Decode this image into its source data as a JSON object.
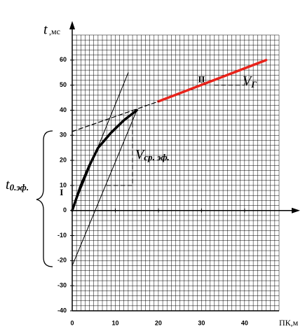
{
  "chart_data": {
    "type": "line",
    "x_label": "ПК,м",
    "y_label": "t",
    "y_unit": ",мс",
    "xlim": [
      0,
      48
    ],
    "ylim": [
      -40,
      70
    ],
    "xticks": [
      0,
      10,
      20,
      30,
      40
    ],
    "yticks": [
      -40,
      -30,
      -20,
      -10,
      0,
      10,
      20,
      30,
      40,
      50,
      60
    ],
    "grid": true,
    "series": [
      {
        "name": "I",
        "color": "#000000",
        "width": 3.5,
        "dash": false,
        "x": [
          0,
          2,
          4,
          6,
          9,
          12,
          15
        ],
        "values": [
          0,
          10,
          18,
          25,
          31,
          36,
          40
        ]
      },
      {
        "name": "II",
        "color": "#e8231b",
        "width": 3.5,
        "dash": false,
        "x": [
          20,
          45
        ],
        "values": [
          43.5,
          60
        ]
      },
      {
        "color": "#000000",
        "width": 1.2,
        "dash": true,
        "x": [
          0,
          20
        ],
        "values": [
          31.5,
          43.5
        ]
      },
      {
        "color": "#000000",
        "width": 1,
        "dash": false,
        "x": [
          0,
          13
        ],
        "values": [
          0,
          55
        ]
      },
      {
        "color": "#000000",
        "width": 1,
        "dash": false,
        "x": [
          0,
          15
        ],
        "values": [
          -22,
          40
        ]
      },
      {
        "color": "#000000",
        "width": 1,
        "dash": true,
        "x": [
          8,
          14,
          14
        ],
        "values": [
          10,
          10,
          40
        ]
      },
      {
        "color": "#000000",
        "width": 1,
        "dash": true,
        "x": [
          33,
          40,
          40
        ],
        "values": [
          50,
          50,
          54
        ]
      }
    ],
    "annotations": {
      "v_mean": {
        "main": "V",
        "sub": "ср. эф."
      },
      "v_g": {
        "main": "V",
        "sub": "Г"
      },
      "t0": {
        "main": "t",
        "sub": "0.эф."
      }
    }
  }
}
